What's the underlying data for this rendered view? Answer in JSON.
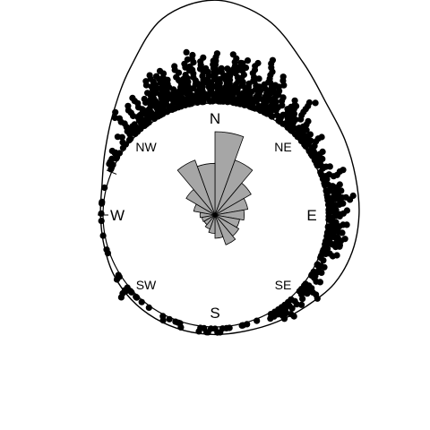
{
  "chart_data": {
    "type": "circular-data-plot",
    "title": "",
    "direction_labels": {
      "N": "N",
      "NE": "NE",
      "E": "E",
      "SE": "SE",
      "S": "S",
      "SW": "SW",
      "W": "W",
      "NW": "NW"
    },
    "rose_diagram": {
      "bin_width_deg": 20,
      "bins": [
        {
          "start_deg": 0,
          "end_deg": 20,
          "relative_length": 1.0
        },
        {
          "start_deg": 20,
          "end_deg": 40,
          "relative_length": 0.7
        },
        {
          "start_deg": 40,
          "end_deg": 60,
          "relative_length": 0.5
        },
        {
          "start_deg": 60,
          "end_deg": 80,
          "relative_length": 0.4
        },
        {
          "start_deg": 80,
          "end_deg": 100,
          "relative_length": 0.35
        },
        {
          "start_deg": 100,
          "end_deg": 120,
          "relative_length": 0.3
        },
        {
          "start_deg": 120,
          "end_deg": 140,
          "relative_length": 0.33
        },
        {
          "start_deg": 140,
          "end_deg": 160,
          "relative_length": 0.38
        },
        {
          "start_deg": 160,
          "end_deg": 180,
          "relative_length": 0.28
        },
        {
          "start_deg": 180,
          "end_deg": 200,
          "relative_length": 0.22
        },
        {
          "start_deg": 200,
          "end_deg": 220,
          "relative_length": 0.18
        },
        {
          "start_deg": 220,
          "end_deg": 240,
          "relative_length": 0.15
        },
        {
          "start_deg": 240,
          "end_deg": 260,
          "relative_length": 0.16
        },
        {
          "start_deg": 260,
          "end_deg": 280,
          "relative_length": 0.18
        },
        {
          "start_deg": 280,
          "end_deg": 300,
          "relative_length": 0.26
        },
        {
          "start_deg": 300,
          "end_deg": 320,
          "relative_length": 0.4
        },
        {
          "start_deg": 320,
          "end_deg": 340,
          "relative_length": 0.7
        },
        {
          "start_deg": 340,
          "end_deg": 360,
          "relative_length": 0.62
        }
      ]
    },
    "density_curve": {
      "angles_deg": [
        0,
        15,
        30,
        45,
        60,
        75,
        90,
        105,
        120,
        135,
        150,
        165,
        180,
        195,
        210,
        225,
        240,
        255,
        270,
        285,
        300,
        315,
        330,
        345
      ],
      "relative_density": [
        2.05,
        1.8,
        1.28,
        0.91,
        0.76,
        0.67,
        0.64,
        0.6,
        0.51,
        0.34,
        0.23,
        0.16,
        0.15,
        0.15,
        0.15,
        0.14,
        0.11,
        0.06,
        0.05,
        0.1,
        0.3,
        0.64,
        1.15,
        1.82
      ]
    },
    "observations": {
      "n_points": 660,
      "density_relative_to_N": [
        1.0,
        0.88,
        0.62,
        0.44,
        0.37,
        0.33,
        0.31,
        0.29,
        0.25,
        0.17,
        0.11,
        0.08,
        0.07,
        0.07,
        0.07,
        0.07,
        0.05,
        0.03,
        0.02,
        0.05,
        0.15,
        0.31,
        0.56,
        0.89
      ]
    },
    "tick_angles_deg": [
      270,
      292.5
    ]
  }
}
